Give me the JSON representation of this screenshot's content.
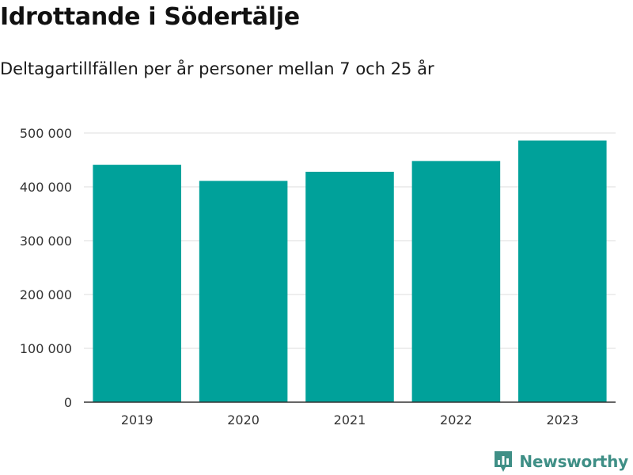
{
  "title": "Idrottande i Södertälje",
  "subtitle": "Deltagartillfällen per år personer mellan 7 och 25 år",
  "brand": {
    "name": "Newsworthy",
    "icon": "newsworthy-logo-icon",
    "color": "#3f8f86"
  },
  "colors": {
    "bar": "#00a19a",
    "grid": "#dddddd",
    "axis": "#333333"
  },
  "chart_data": {
    "type": "bar",
    "categories": [
      "2019",
      "2020",
      "2021",
      "2022",
      "2023"
    ],
    "values": [
      441000,
      411000,
      428000,
      448000,
      486000
    ],
    "ylim": [
      0,
      500000
    ],
    "yticks": [
      0,
      100000,
      200000,
      300000,
      400000,
      500000
    ],
    "ytick_labels": [
      "0",
      "100 000",
      "200 000",
      "300 000",
      "400 000",
      "500 000"
    ],
    "xlabel": "",
    "ylabel": "",
    "grid": true,
    "legend": "none"
  }
}
